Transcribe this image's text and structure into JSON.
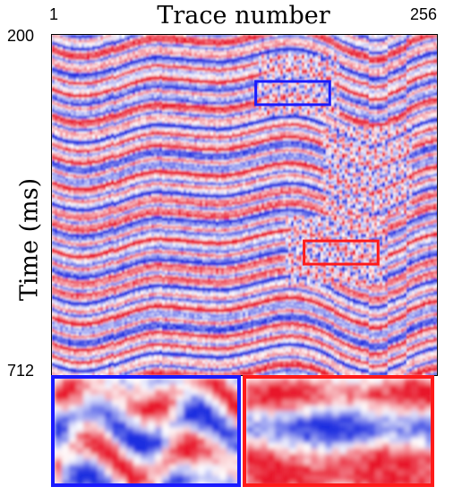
{
  "figure": {
    "x_axis_title": "Trace number",
    "y_axis_title": "Time (ms)",
    "x_tick_first": "1",
    "x_tick_last": "256",
    "y_tick_first": "200",
    "y_tick_last": "712"
  },
  "colors": {
    "positive": "#e8192c",
    "negative": "#1f2fe0",
    "zero": "#ffffff",
    "blue_box": "#1a1aff",
    "red_box": "#ff1a1a"
  },
  "zoom_regions": [
    {
      "color_key": "blue_box",
      "trace_range": [
        136,
        185
      ],
      "time_range_ms": [
        270,
        305
      ]
    },
    {
      "color_key": "red_box",
      "trace_range": [
        168,
        217
      ],
      "time_range_ms": [
        510,
        545
      ]
    }
  ]
}
